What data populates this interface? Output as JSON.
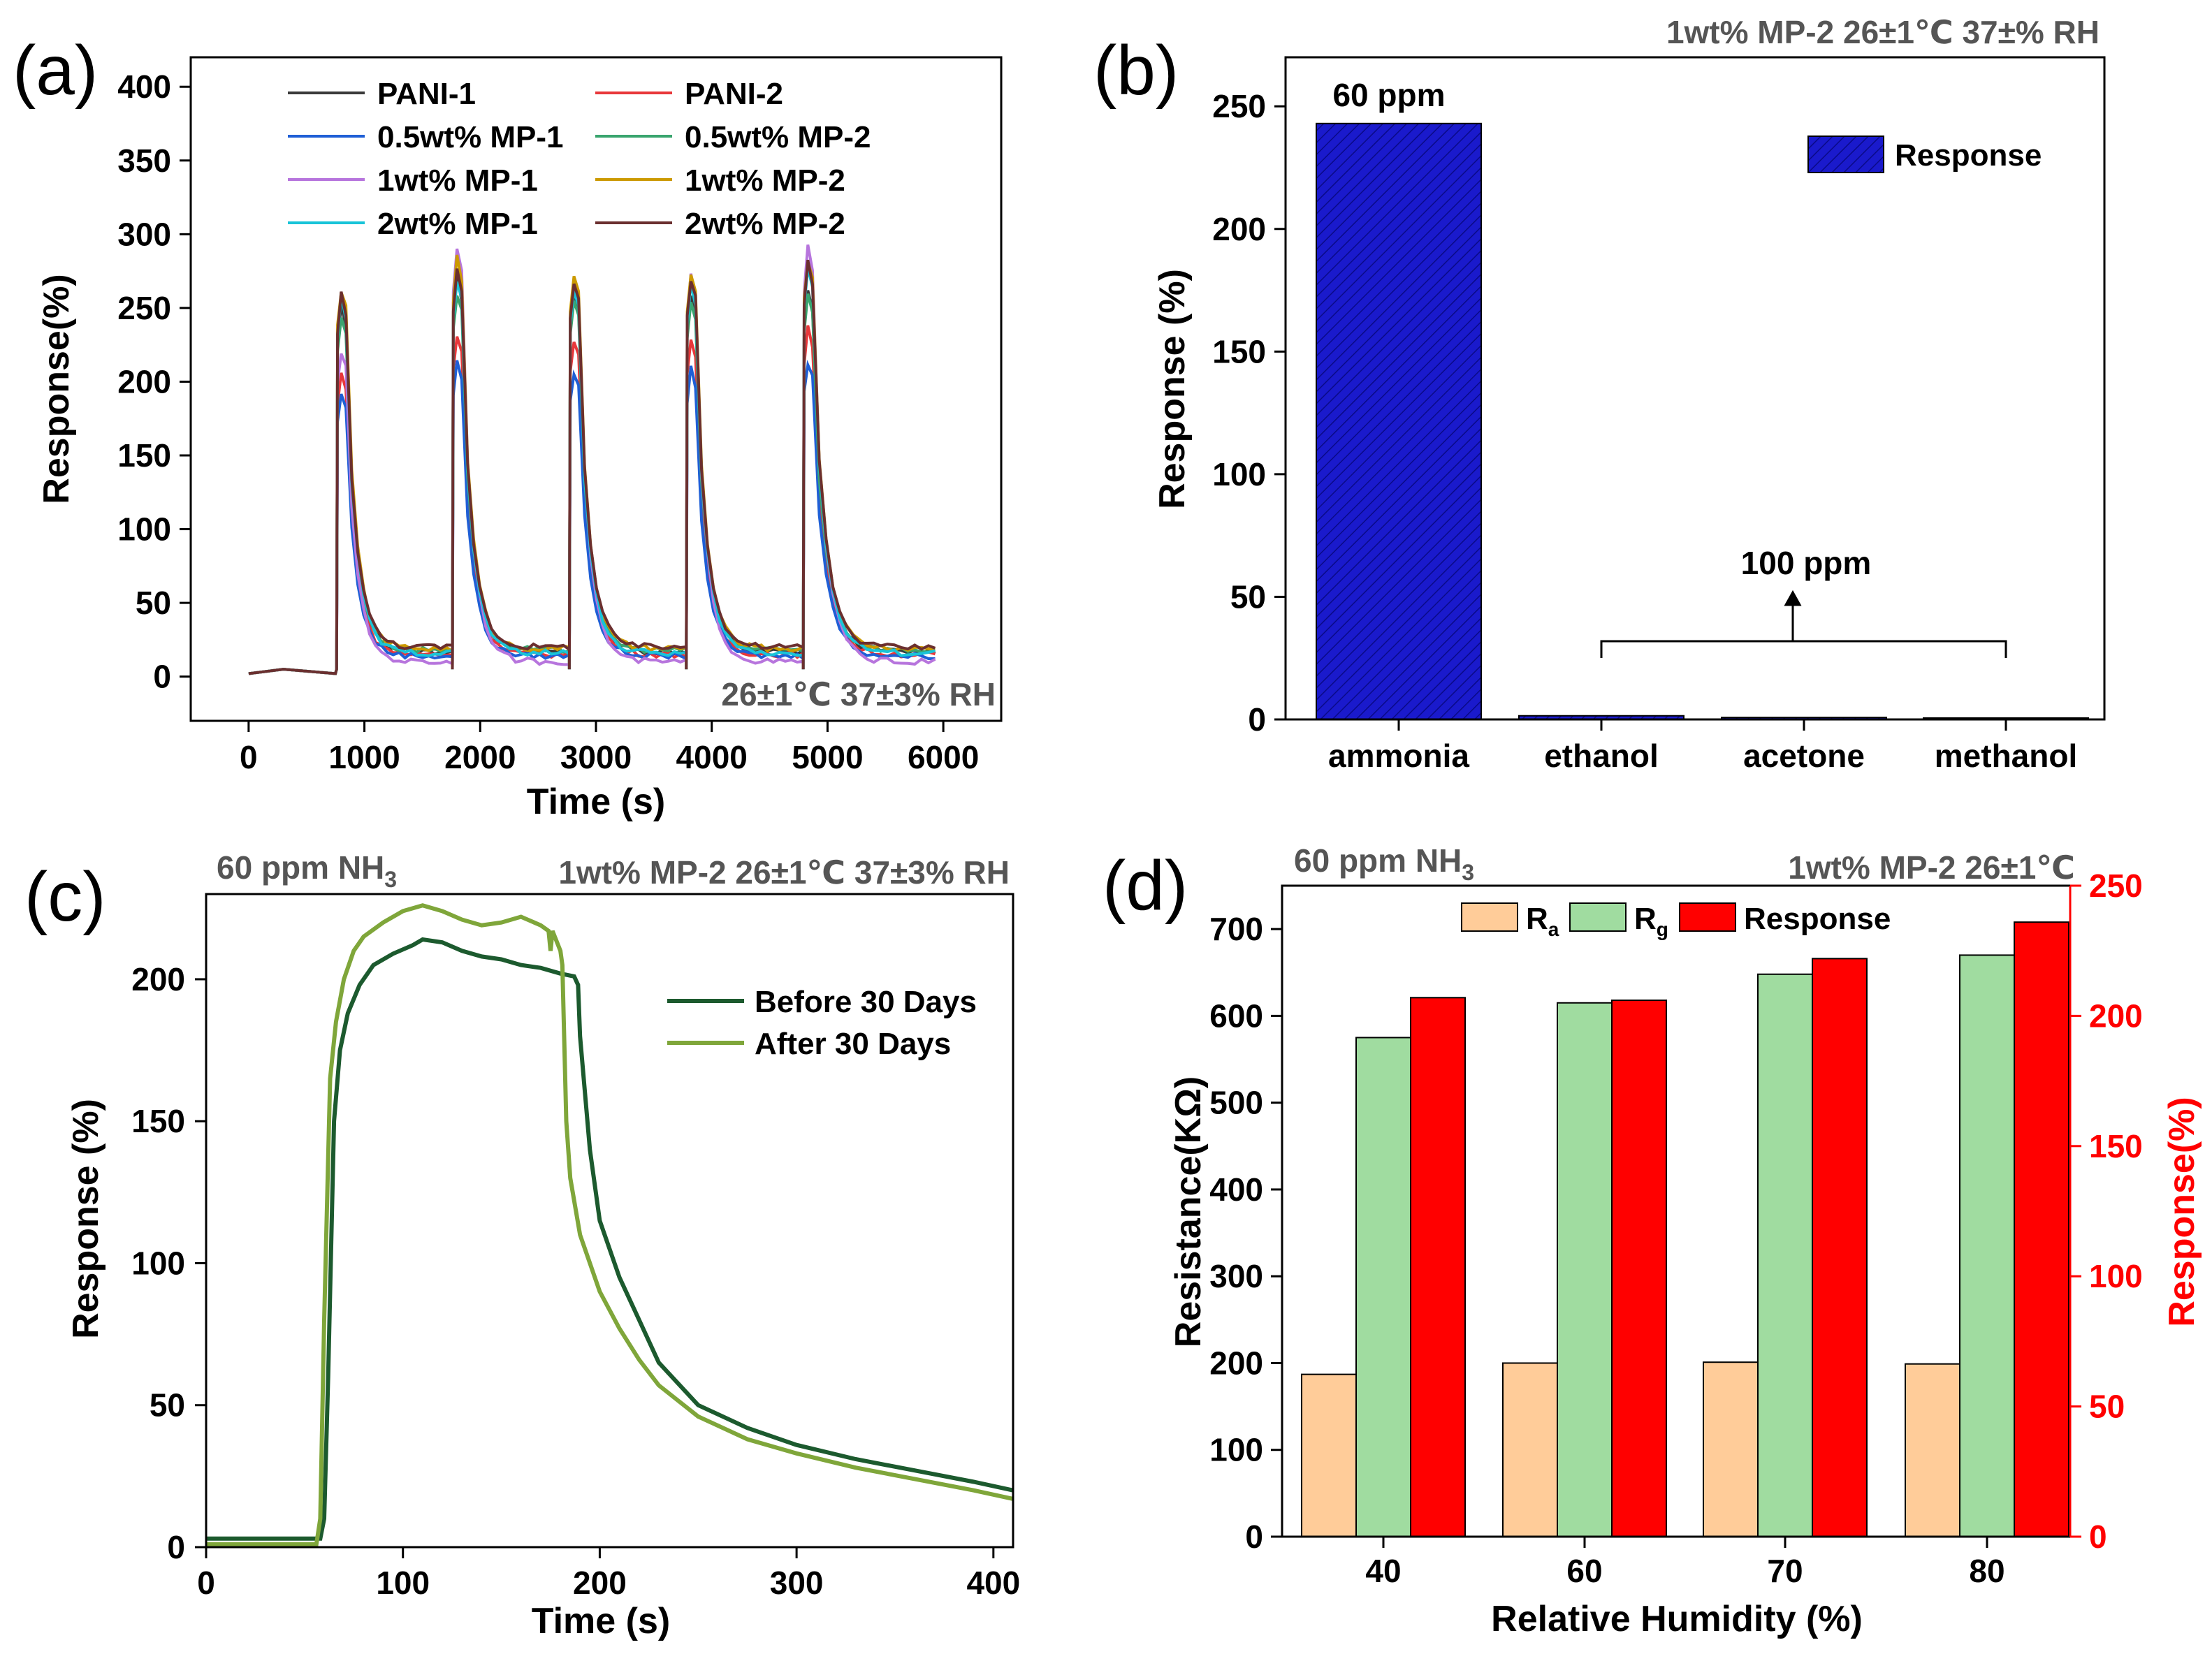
{
  "colors": {
    "pani1": "#3a3a3a",
    "pani2": "#e8373a",
    "mp05_1": "#1f5fd6",
    "mp05_2": "#3aa56e",
    "mp1_1": "#b775dd",
    "mp1_2": "#cc9a00",
    "mp2_1": "#19c4d8",
    "mp2_2": "#6b2f2f",
    "bar_blue": "#1a1acc",
    "ra": "#ffcc99",
    "rg": "#a0dca0",
    "resp_red": "#ff0000",
    "before": "#1c5a2e",
    "after": "#7fa63a"
  },
  "chart_data": [
    {
      "panel": "(a)",
      "type": "line",
      "xlabel": "Time (s)",
      "ylabel": "Response(%)",
      "xlim": [
        -500,
        6500
      ],
      "ylim": [
        -30,
        420
      ],
      "xticks": [
        0,
        1000,
        2000,
        3000,
        4000,
        5000,
        6000
      ],
      "yticks": [
        0,
        50,
        100,
        150,
        200,
        250,
        300,
        350,
        400
      ],
      "annotation": "26±1℃  37±3% RH",
      "pulse_starts": [
        760,
        1760,
        2770,
        3780,
        4790
      ],
      "pulse_length": 80,
      "cycle_end": 5930,
      "series": [
        {
          "name": "PANI-1",
          "color_key": "pani1",
          "peaks": [
            250,
            268,
            262,
            262,
            262
          ],
          "tail": 17
        },
        {
          "name": "PANI-2",
          "color_key": "pani2",
          "peaks": [
            205,
            232,
            230,
            228,
            235
          ],
          "tail": 15
        },
        {
          "name": "0.5wt% MP-1",
          "color_key": "mp05_1",
          "peaks": [
            192,
            212,
            208,
            206,
            215
          ],
          "tail": 14
        },
        {
          "name": "0.5wt% MP-2",
          "color_key": "mp05_2",
          "peaks": [
            245,
            262,
            258,
            255,
            260
          ],
          "tail": 18
        },
        {
          "name": "1wt% MP-1",
          "color_key": "mp1_1",
          "peaks": [
            222,
            290,
            270,
            270,
            290
          ],
          "tail": 10
        },
        {
          "name": "1wt% MP-2",
          "color_key": "mp1_2",
          "peaks": [
            265,
            282,
            275,
            275,
            285
          ],
          "tail": 19
        },
        {
          "name": "2wt% MP-1",
          "color_key": "mp2_1",
          "peaks": [
            255,
            270,
            265,
            265,
            278
          ],
          "tail": 16
        },
        {
          "name": "2wt% MP-2",
          "color_key": "mp2_2",
          "peaks": [
            258,
            275,
            270,
            272,
            280
          ],
          "tail": 20
        }
      ]
    },
    {
      "panel": "(b)",
      "type": "bar",
      "title": "1wt% MP-2 26±1℃ 37±% RH",
      "xlabel": "",
      "ylabel": "Response (%)",
      "ylim": [
        0,
        270
      ],
      "yticks": [
        0,
        50,
        100,
        150,
        200,
        250
      ],
      "categories": [
        "ammonia",
        "ethanol",
        "acetone",
        "methanol"
      ],
      "values": [
        243,
        1.5,
        0.8,
        0.6
      ],
      "legend": "Response",
      "annotations": [
        "60 ppm",
        "100 ppm"
      ]
    },
    {
      "panel": "(c)",
      "type": "line",
      "xlabel": "Time (s)",
      "ylabel": "Response (%)",
      "xlim": [
        0,
        410
      ],
      "ylim": [
        0,
        230
      ],
      "xticks": [
        0,
        100,
        200,
        300,
        400
      ],
      "yticks": [
        0,
        50,
        100,
        150,
        200
      ],
      "annotation_left": "60 ppm NH",
      "annotation_sub": "3",
      "annotation_right": "1wt% MP-2 26±1℃ 37±3% RH",
      "series": [
        {
          "name": "Before 30 Days",
          "color_key": "before",
          "x": [
            0,
            58,
            60,
            62,
            65,
            68,
            72,
            78,
            85,
            95,
            105,
            110,
            120,
            130,
            140,
            150,
            160,
            170,
            180,
            187,
            189,
            190,
            195,
            200,
            210,
            220,
            230,
            250,
            275,
            300,
            330,
            360,
            390,
            410
          ],
          "y": [
            3,
            3,
            10,
            60,
            150,
            175,
            188,
            198,
            205,
            209,
            212,
            214,
            213,
            210,
            208,
            207,
            205,
            204,
            202,
            201,
            198,
            180,
            140,
            115,
            95,
            80,
            65,
            50,
            42,
            36,
            31,
            27,
            23,
            20
          ]
        },
        {
          "name": "After 30 Days",
          "color_key": "after",
          "x": [
            0,
            56,
            58,
            60,
            63,
            66,
            70,
            75,
            80,
            90,
            100,
            110,
            120,
            130,
            140,
            150,
            160,
            170,
            174,
            175,
            176,
            180,
            181,
            183,
            185,
            190,
            200,
            210,
            220,
            230,
            250,
            275,
            300,
            330,
            360,
            390,
            410
          ],
          "y": [
            1,
            1,
            10,
            80,
            165,
            185,
            200,
            210,
            215,
            220,
            224,
            226,
            224,
            221,
            219,
            220,
            222,
            219,
            217,
            210,
            217,
            210,
            205,
            150,
            130,
            110,
            90,
            77,
            66,
            57,
            46,
            38,
            33,
            28,
            24,
            20,
            17
          ]
        }
      ]
    },
    {
      "panel": "(d)",
      "type": "bar",
      "xlabel": "Relative Humidity (%)",
      "ylabel": "Resistance(KΩ)",
      "ylabel_right": "Response(%)",
      "ylim": [
        0,
        750
      ],
      "ylim_right": [
        0,
        250
      ],
      "yticks": [
        0,
        100,
        200,
        300,
        400,
        500,
        600,
        700
      ],
      "yticks_right": [
        0,
        50,
        100,
        150,
        200,
        250
      ],
      "categories": [
        "40",
        "60",
        "70",
        "80"
      ],
      "series": [
        {
          "name": "R",
          "sub": "a",
          "color_key": "ra",
          "axis": "left",
          "values": [
            187,
            200,
            201,
            199
          ]
        },
        {
          "name": "R",
          "sub": "g",
          "color_key": "rg",
          "axis": "left",
          "values": [
            575,
            615,
            648,
            670
          ]
        },
        {
          "name": "Response",
          "color_key": "resp_red",
          "axis": "right",
          "values": [
            207,
            206,
            222,
            236
          ]
        }
      ],
      "annotation_left": "60 ppm NH",
      "annotation_sub": "3",
      "annotation_right": "1wt% MP-2 26±1℃"
    }
  ]
}
